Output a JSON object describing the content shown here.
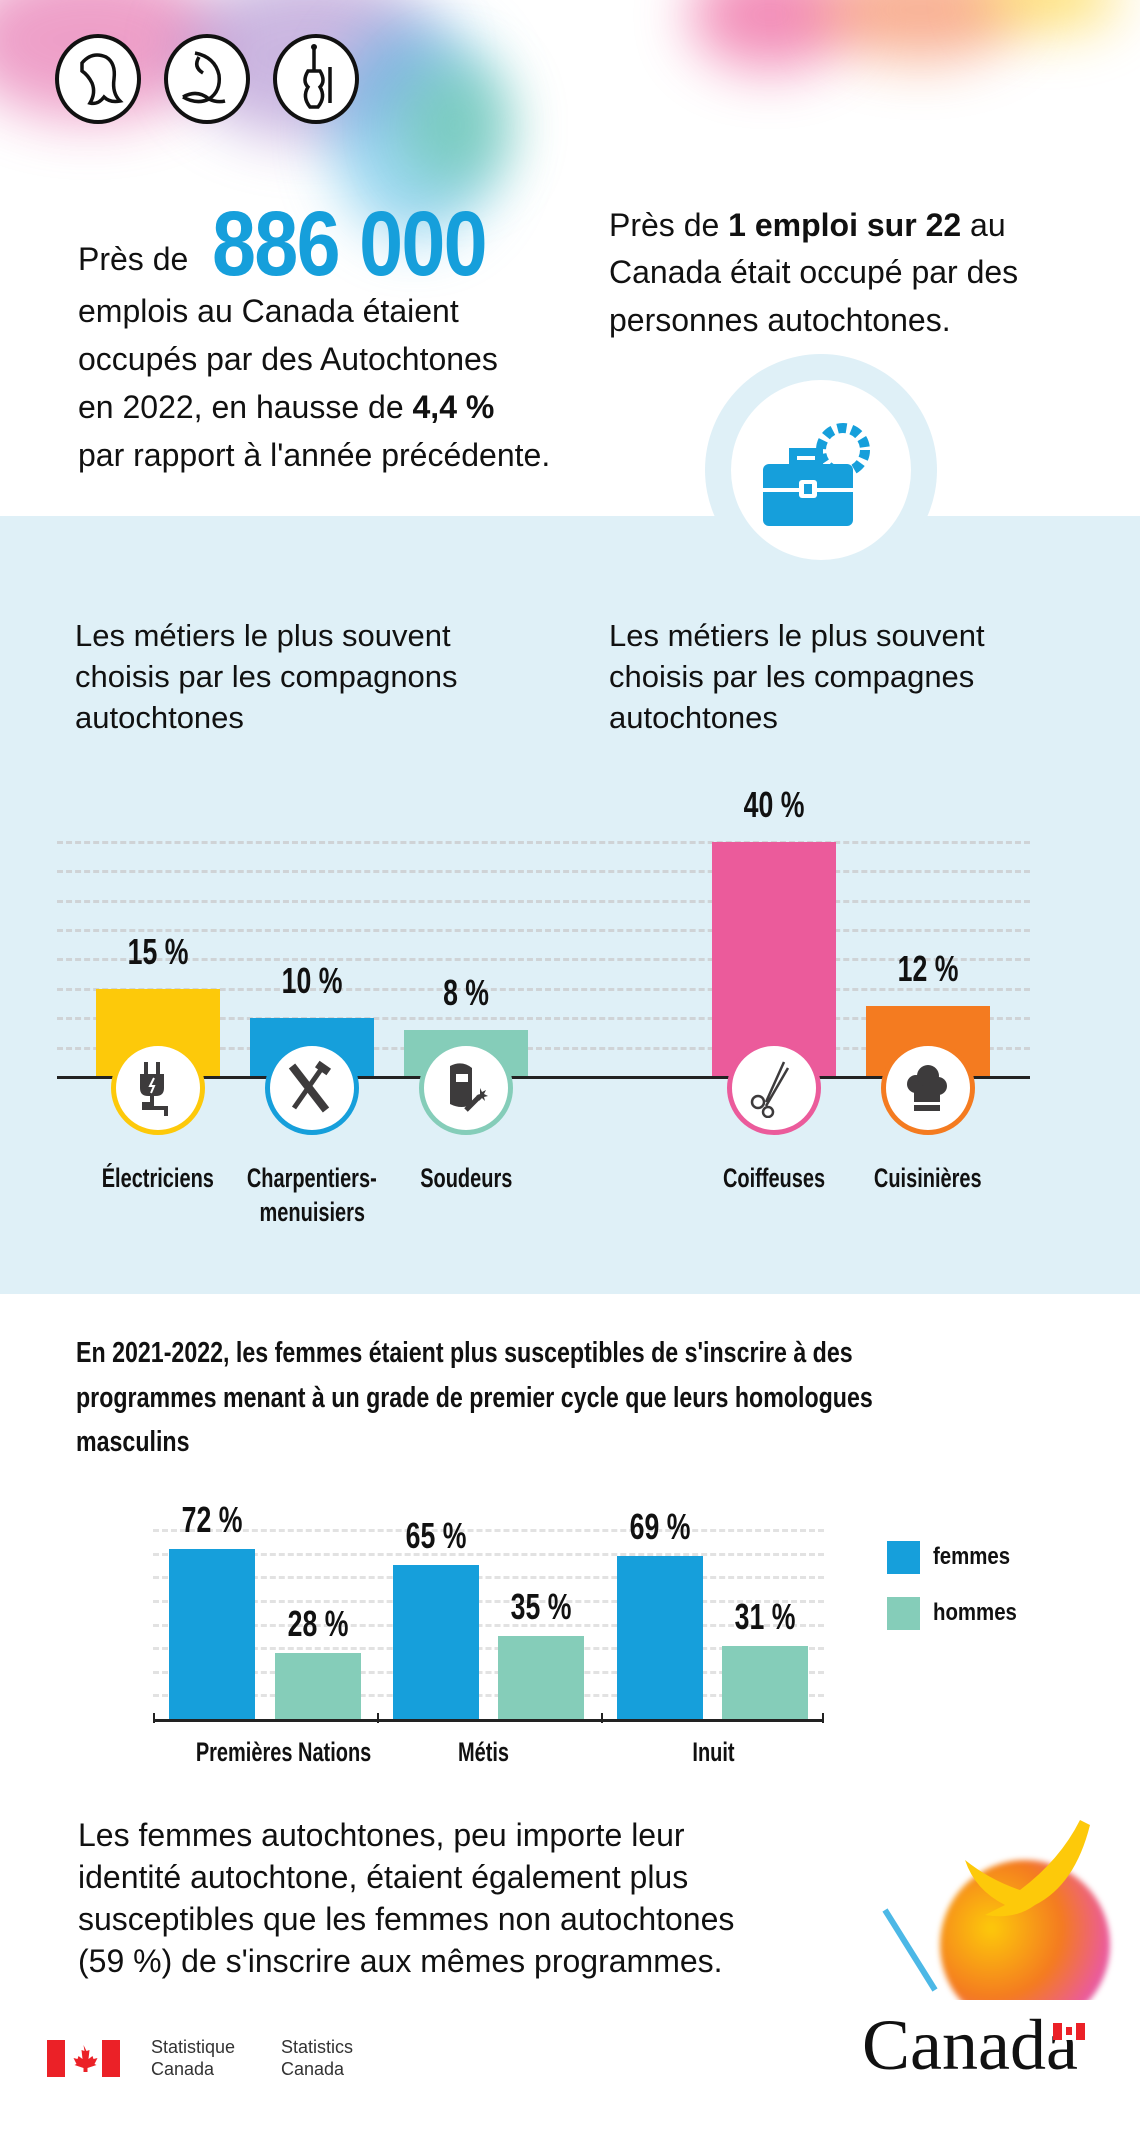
{
  "header": {
    "icons": [
      "eagle-icon",
      "narwhal-icon",
      "fiddle-icon"
    ],
    "stat_intro": "Près de",
    "stat_big": "886 000",
    "stat_lines": [
      "emplois au Canada étaient",
      "occupés par des Autochtones"
    ],
    "stat_line3_pre": "en 2022, en hausse de ",
    "stat_line3_bold": "4,4 %",
    "stat_line4": "par rapport à l'année précédente.",
    "right_pre": "Près de ",
    "right_bold": "1 emploi sur 22",
    "right_post": " au",
    "right_lines": [
      "Canada était occupé par des",
      "personnes autochtones."
    ],
    "center_icon": "briefcase-gear-icon"
  },
  "colors": {
    "blue": "#169fdb",
    "teal": "#85cdb9",
    "yellow": "#fdc90a",
    "pink": "#eb5b9b",
    "orange": "#f47b20",
    "section_bg": "#dff0f7"
  },
  "trades": {
    "heading_men": [
      "Les métiers le plus souvent",
      "choisis par les compagnons",
      "autochtones"
    ],
    "heading_women": [
      "Les métiers le plus souvent",
      "choisis par les compagnes",
      "autochtones"
    ]
  },
  "chart_data": [
    {
      "type": "bar",
      "categories": [
        "Électriciens",
        "Charpentiers-menuisiers",
        "Soudeurs",
        "Coiffeuses",
        "Cuisinières"
      ],
      "category_lines": [
        [
          "Électriciens"
        ],
        [
          "Charpentiers-",
          "menuisiers"
        ],
        [
          "Soudeurs"
        ],
        [
          "Coiffeuses"
        ],
        [
          "Cuisinières"
        ]
      ],
      "values": [
        15,
        10,
        8,
        40,
        12
      ],
      "value_labels": [
        "15 %",
        "10 %",
        "8 %",
        "40 %",
        "12 %"
      ],
      "bar_colors": [
        "#fdc90a",
        "#169fdb",
        "#85cdb9",
        "#eb5b9b",
        "#f47b20"
      ],
      "icons": [
        "plug-icon",
        "saw-hammer-icon",
        "welding-mask-icon",
        "scissors-icon",
        "chef-hat-icon"
      ],
      "ylim": [
        0,
        40
      ],
      "grid": true
    },
    {
      "type": "bar",
      "title_lines": [
        "En 2021-2022, les femmes étaient plus susceptibles de s'inscrire à des",
        "programmes menant à un grade de premier cycle que leurs homologues",
        "masculins"
      ],
      "categories": [
        "Premières Nations",
        "Métis",
        "Inuit"
      ],
      "series": [
        {
          "name": "femmes",
          "values": [
            72,
            65,
            69
          ],
          "labels": [
            "72 %",
            "65 %",
            "69 %"
          ],
          "color": "#169fdb"
        },
        {
          "name": "hommes",
          "values": [
            28,
            35,
            31
          ],
          "labels": [
            "28 %",
            "35 %",
            "31 %"
          ],
          "color": "#85cdb9"
        }
      ],
      "ylim": [
        0,
        80
      ],
      "grid": true,
      "legend": "right"
    }
  ],
  "bottom": {
    "lines": [
      "Les femmes autochtones, peu importe leur",
      "identité autochtone, étaient également plus",
      "susceptibles que les femmes non autochtones",
      "(59 %) de s'inscrire aux mêmes programmes."
    ]
  },
  "footer": {
    "fr": [
      "Statistique",
      "Canada"
    ],
    "en": [
      "Statistics",
      "Canada"
    ],
    "wordmark": "Canada"
  }
}
